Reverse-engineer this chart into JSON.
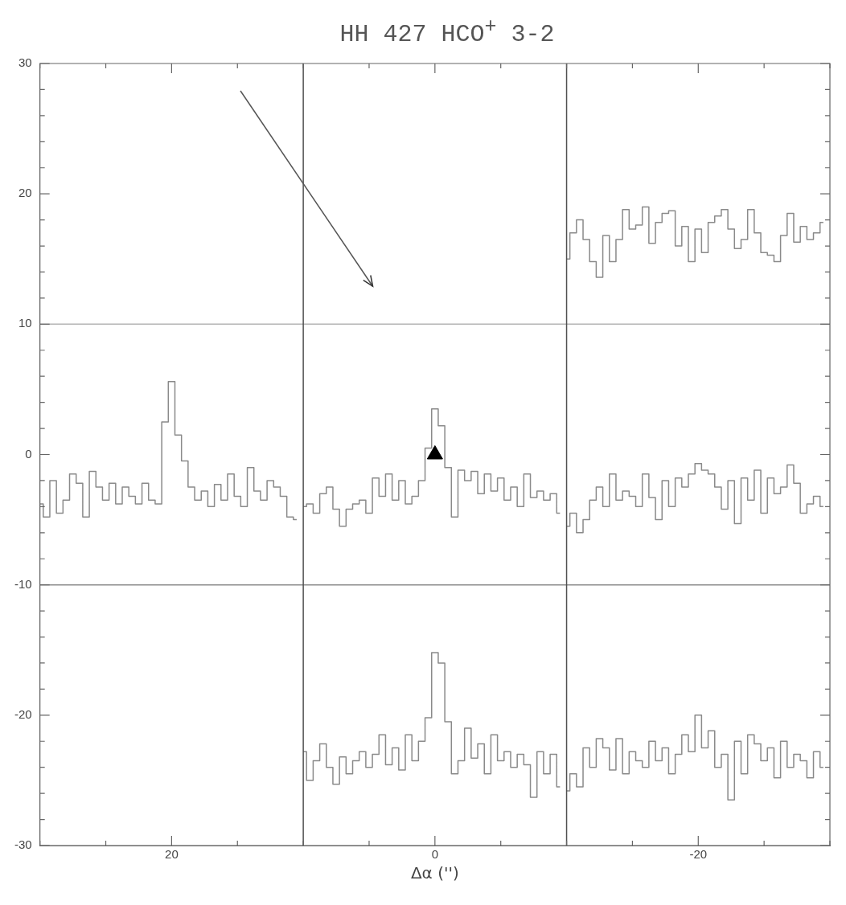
{
  "chart_data": {
    "type": "step",
    "title": "HH 427 HCO$^{+}$ 3-2",
    "xlabel": "Δα ('')",
    "xlim": [
      30,
      -30
    ],
    "ylim": [
      -30,
      30
    ],
    "xticks": [
      {
        "value": 30,
        "label": null
      },
      {
        "value": 25,
        "label": null
      },
      20,
      {
        "value": 15,
        "label": null
      },
      {
        "value": 10,
        "label": null
      },
      {
        "value": 5,
        "label": null
      },
      0,
      {
        "value": -5,
        "label": null
      },
      {
        "value": -10,
        "label": null
      },
      {
        "value": -15,
        "label": null
      },
      -20,
      {
        "value": -25,
        "label": null
      },
      {
        "value": -30,
        "label": null
      }
    ],
    "yticks": [
      -30,
      {
        "value": -28,
        "label": null
      },
      {
        "value": -26,
        "label": null
      },
      {
        "value": -24,
        "label": null
      },
      {
        "value": -22,
        "label": null
      },
      -20,
      {
        "value": -18,
        "label": null
      },
      {
        "value": -16,
        "label": null
      },
      {
        "value": -14,
        "label": null
      },
      {
        "value": -12,
        "label": null
      },
      -10,
      {
        "value": -8,
        "label": null
      },
      {
        "value": -6,
        "label": null
      },
      {
        "value": -4,
        "label": null
      },
      {
        "value": -2,
        "label": null
      },
      0,
      {
        "value": 2,
        "label": null
      },
      {
        "value": 4,
        "label": null
      },
      {
        "value": 6,
        "label": null
      },
      {
        "value": 8,
        "label": null
      },
      10,
      {
        "value": 12,
        "label": null
      },
      {
        "value": 14,
        "label": null
      },
      {
        "value": 16,
        "label": null
      },
      {
        "value": 18,
        "label": null
      },
      20,
      {
        "value": 22,
        "label": null
      },
      {
        "value": 24,
        "label": null
      },
      {
        "value": 26,
        "label": null
      },
      {
        "value": 28,
        "label": null
      },
      30
    ],
    "grid": false,
    "legend": false,
    "line_style": "solid",
    "marker": "none",
    "ref_lines": [
      {
        "axis": "y",
        "value": 10,
        "color": "#b4b4b4"
      },
      {
        "axis": "y",
        "value": -10,
        "color": "#8c8c8c"
      },
      {
        "axis": "x",
        "value": 10,
        "color": "#505050"
      },
      {
        "axis": "x",
        "value": -10,
        "color": "#505050"
      }
    ],
    "series": [
      {
        "color": "#8a8a8a",
        "x": [
          -10,
          -10.5,
          -11,
          -11.5,
          -12,
          -12.5,
          -13,
          -13.5,
          -14,
          -14.5,
          -15,
          -15.5,
          -16,
          -16.5,
          -17,
          -17.5,
          -18,
          -18.5,
          -19,
          -19.5,
          -20,
          -20.5,
          -21,
          -21.5,
          -22,
          -22.5,
          -23,
          -23.5,
          -24,
          -24.5,
          -25,
          -25.5,
          -26,
          -26.5,
          -27,
          -27.5,
          -28,
          -28.5,
          -29,
          -29.5
        ],
        "values": [
          15,
          17,
          18,
          16.5,
          14.8,
          13.6,
          16.8,
          14.8,
          16.5,
          18.8,
          17.3,
          17.6,
          19,
          16.2,
          17.8,
          18.5,
          18.7,
          16,
          17.5,
          14.8,
          17.3,
          15.5,
          17.8,
          18.3,
          18.8,
          17.3,
          15.8,
          16.5,
          18.8,
          17,
          15.5,
          15.3,
          14.8,
          16.8,
          18.5,
          16.3,
          17.5,
          16.5,
          17,
          17.8
        ]
      },
      {
        "color": "#8a8a8a",
        "x": [
          30,
          29.5,
          29,
          28.5,
          28,
          27.5,
          27,
          26.5,
          26,
          25.5,
          25,
          24.5,
          24,
          23.5,
          23,
          22.5,
          22,
          21.5,
          21,
          20.5,
          20,
          19.5,
          19,
          18.5,
          18,
          17.5,
          17,
          16.5,
          16,
          15.5,
          15,
          14.5,
          14,
          13.5,
          13,
          12.5,
          12,
          11.5,
          11,
          10.5
        ],
        "values": [
          -3.8,
          -4.8,
          -2,
          -4.5,
          -3.5,
          -1.5,
          -2.2,
          -4.8,
          -1.3,
          -2.5,
          -3.5,
          -2.2,
          -3.8,
          -2.5,
          -3.2,
          -3.8,
          -2.2,
          -3.5,
          -3.8,
          2.5,
          5.6,
          1.5,
          -0.5,
          -2.5,
          -3.5,
          -2.8,
          -4,
          -2.3,
          -3.5,
          -1.5,
          -3.2,
          -4,
          -1,
          -2.8,
          -3.5,
          -2,
          -2.5,
          -3.2,
          -4.8,
          -5
        ]
      },
      {
        "color": "#8a8a8a",
        "x": [
          10,
          9.5,
          9,
          8.5,
          8,
          7.5,
          7,
          6.5,
          6,
          5.5,
          5,
          4.5,
          4,
          3.5,
          3,
          2.5,
          2,
          1.5,
          1,
          0.5,
          0,
          -0.5,
          -1,
          -1.5,
          -2,
          -2.5,
          -3,
          -3.5,
          -4,
          -4.5,
          -5,
          -5.5,
          -6,
          -6.5,
          -7,
          -7.5,
          -8,
          -8.5,
          -9,
          -9.5
        ],
        "values": [
          -4,
          -3.8,
          -4.5,
          -3,
          -2.5,
          -4.2,
          -5.5,
          -4.2,
          -3.8,
          -3.5,
          -4.5,
          -1.8,
          -3.2,
          -1.5,
          -3.5,
          -2,
          -3.8,
          -3.2,
          -2,
          0.5,
          3.5,
          2.2,
          -1,
          -4.8,
          -1.2,
          -2,
          -1.3,
          -3,
          -1.5,
          -2.8,
          -1.8,
          -3.5,
          -2.5,
          -4,
          -1.5,
          -3.3,
          -2.8,
          -3.5,
          -3,
          -4.5
        ]
      },
      {
        "color": "#8a8a8a",
        "x": [
          -10,
          -10.5,
          -11,
          -11.5,
          -12,
          -12.5,
          -13,
          -13.5,
          -14,
          -14.5,
          -15,
          -15.5,
          -16,
          -16.5,
          -17,
          -17.5,
          -18,
          -18.5,
          -19,
          -19.5,
          -20,
          -20.5,
          -21,
          -21.5,
          -22,
          -22.5,
          -23,
          -23.5,
          -24,
          -24.5,
          -25,
          -25.5,
          -26,
          -26.5,
          -27,
          -27.5,
          -28,
          -28.5,
          -29,
          -29.5
        ],
        "values": [
          -5.5,
          -4.5,
          -6,
          -5,
          -3.5,
          -2.5,
          -4,
          -1.5,
          -3.5,
          -2.8,
          -3.2,
          -4,
          -1.5,
          -3.3,
          -5,
          -2,
          -4,
          -1.8,
          -2.5,
          -1.5,
          -0.7,
          -1.2,
          -1.5,
          -2.5,
          -4.2,
          -2,
          -5.3,
          -1.8,
          -3.5,
          -1.2,
          -4.5,
          -1.8,
          -3,
          -2.5,
          -0.8,
          -2.2,
          -4.5,
          -3.8,
          -3.2,
          -4
        ]
      },
      {
        "color": "#8a8a8a",
        "x": [
          10,
          9.5,
          9,
          8.5,
          8,
          7.5,
          7,
          6.5,
          6,
          5.5,
          5,
          4.5,
          4,
          3.5,
          3,
          2.5,
          2,
          1.5,
          1,
          0.5,
          0,
          -0.5,
          -1,
          -1.5,
          -2,
          -2.5,
          -3,
          -3.5,
          -4,
          -4.5,
          -5,
          -5.5,
          -6,
          -6.5,
          -7,
          -7.5,
          -8,
          -8.5,
          -9,
          -9.5
        ],
        "values": [
          -22.8,
          -25,
          -23.5,
          -22.2,
          -24,
          -25.3,
          -23.2,
          -24.5,
          -23.5,
          -22.8,
          -24,
          -23,
          -21.5,
          -23.8,
          -22.5,
          -24.2,
          -21.5,
          -23.5,
          -22,
          -20.2,
          -15.2,
          -16,
          -20.5,
          -24.5,
          -23.5,
          -21,
          -23.3,
          -22.2,
          -24.5,
          -21.5,
          -23.5,
          -22.8,
          -24,
          -23,
          -23.8,
          -26.3,
          -22.8,
          -24.5,
          -23,
          -25.5
        ]
      },
      {
        "color": "#8a8a8a",
        "x": [
          -10,
          -10.5,
          -11,
          -11.5,
          -12,
          -12.5,
          -13,
          -13.5,
          -14,
          -14.5,
          -15,
          -15.5,
          -16,
          -16.5,
          -17,
          -17.5,
          -18,
          -18.5,
          -19,
          -19.5,
          -20,
          -20.5,
          -21,
          -21.5,
          -22,
          -22.5,
          -23,
          -23.5,
          -24,
          -24.5,
          -25,
          -25.5,
          -26,
          -26.5,
          -27,
          -27.5,
          -28,
          -28.5,
          -29,
          -29.5
        ],
        "values": [
          -25.8,
          -24.5,
          -25.5,
          -22.5,
          -24,
          -21.8,
          -22.5,
          -24.2,
          -21.8,
          -24.5,
          -22.8,
          -23.5,
          -24,
          -22,
          -23.5,
          -22.5,
          -24.5,
          -23,
          -21.5,
          -22.8,
          -20,
          -22.5,
          -21.2,
          -24,
          -23,
          -26.5,
          -22,
          -24.5,
          -21.5,
          -22.2,
          -23.5,
          -22.5,
          -24.8,
          -22,
          -24,
          -23,
          -23.5,
          -24.8,
          -22.8,
          -24
        ]
      },
      {
        "type": "scatter",
        "marker": "triangle",
        "color": "#000000",
        "x": [
          0
        ],
        "values": [
          0
        ]
      }
    ]
  }
}
